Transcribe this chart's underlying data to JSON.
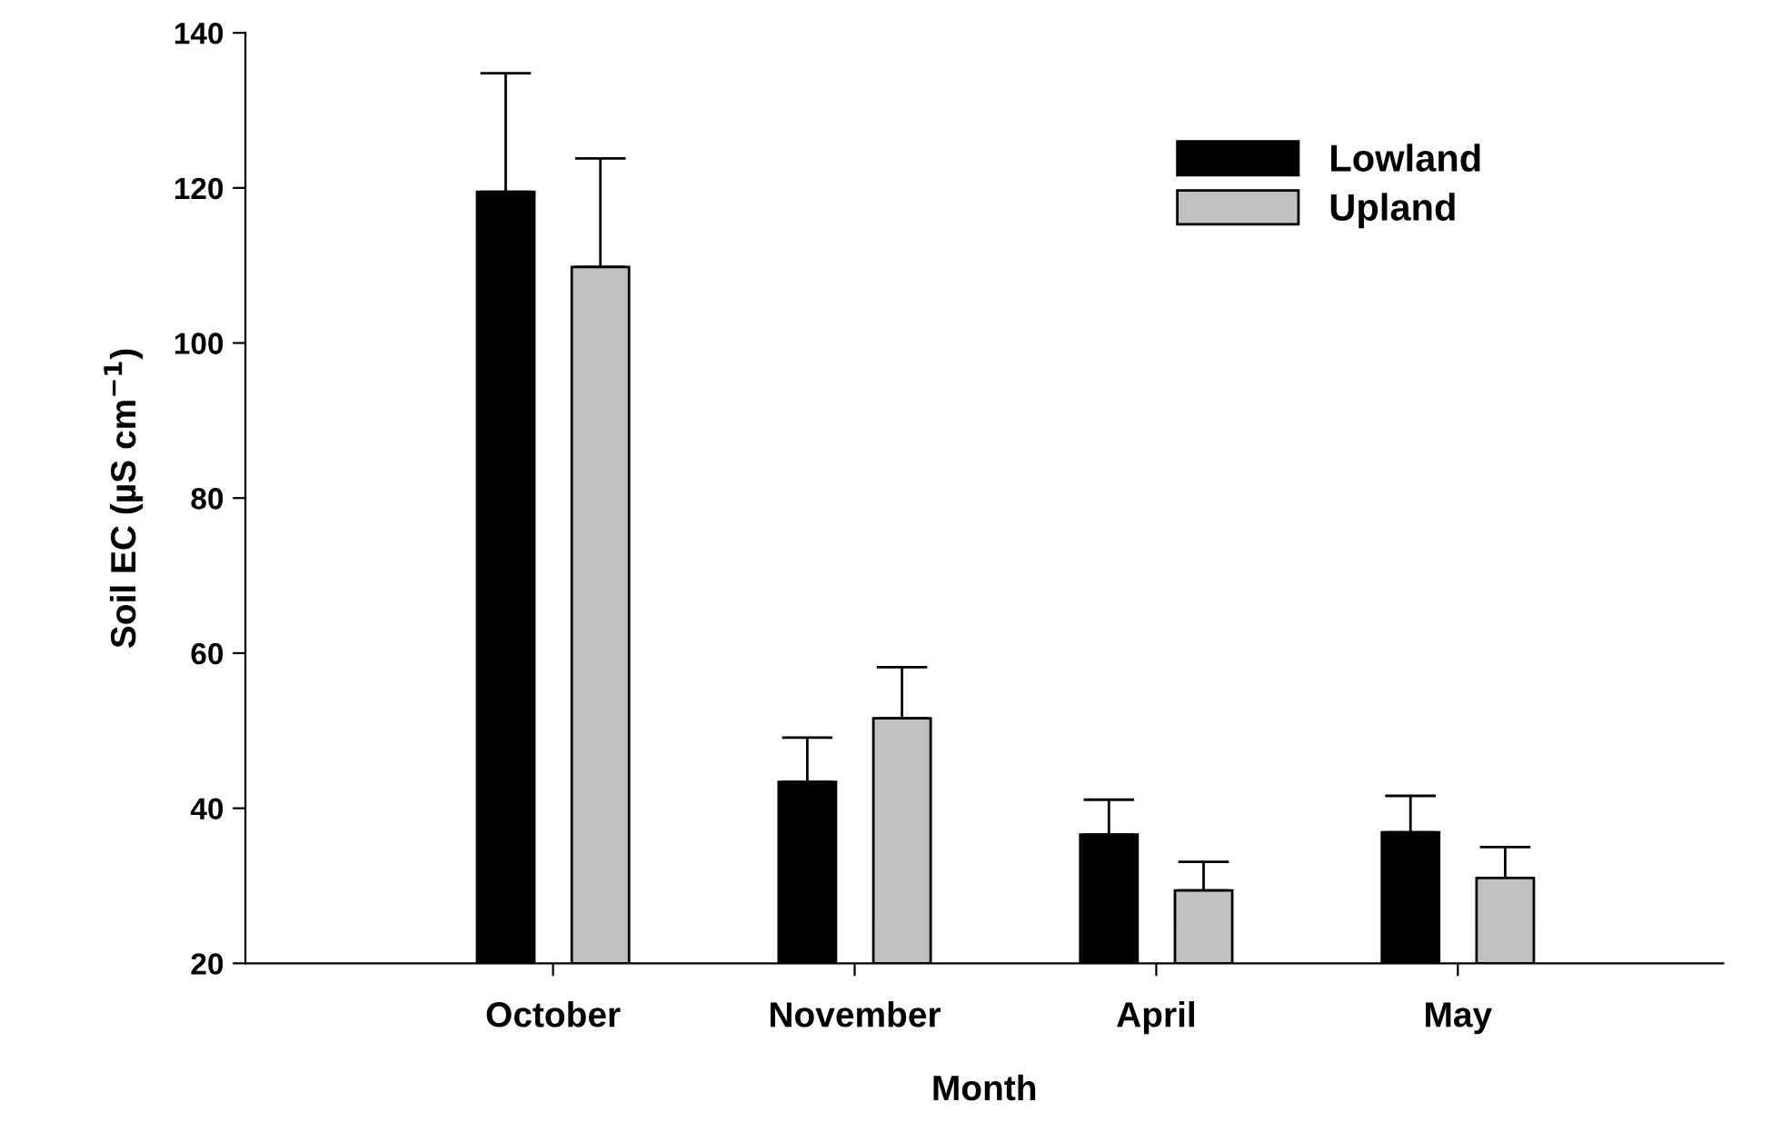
{
  "chart_data": {
    "type": "bar",
    "xlabel": "Month",
    "ylabel": "Soil EC (µS cm$^{−1}$)",
    "categories": [
      "October",
      "November",
      "April",
      "May"
    ],
    "series": [
      {
        "name": "Lowland",
        "color": "#000000",
        "values": [
          119.5,
          43.4,
          36.6,
          36.9
        ],
        "errors": [
          [
            119.5,
            134.8
          ],
          [
            43.4,
            49.1
          ],
          [
            36.6,
            41.1
          ],
          [
            36.9,
            41.6
          ]
        ]
      },
      {
        "name": "Upland",
        "color": "#c0c0c0",
        "values": [
          109.8,
          51.6,
          29.4,
          31.0
        ],
        "errors": [
          [
            109.8,
            123.8
          ],
          [
            51.6,
            58.2
          ],
          [
            29.4,
            33.1
          ],
          [
            31.0,
            35.0
          ]
        ]
      }
    ],
    "ylim": [
      20,
      140
    ],
    "yticks": [
      20,
      40,
      60,
      80,
      100,
      120,
      140
    ],
    "grid": false,
    "legend": "top right"
  }
}
